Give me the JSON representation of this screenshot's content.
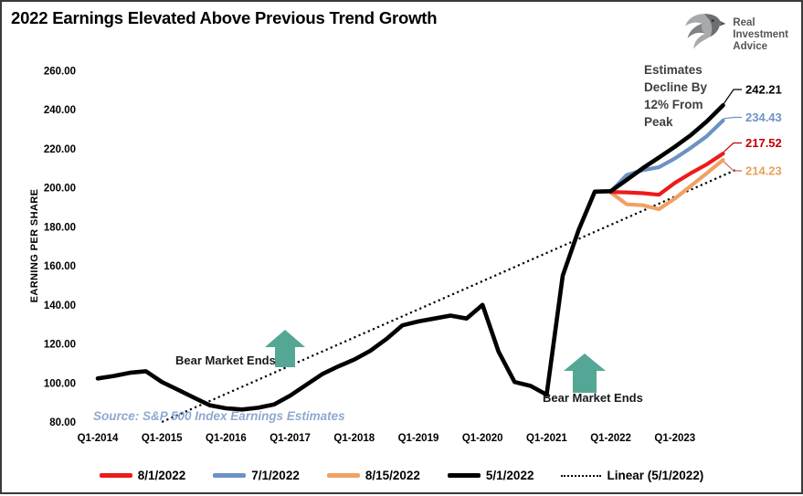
{
  "title": "2022 Earnings Elevated Above Previous Trend Growth",
  "logo": {
    "lines": [
      "Real",
      "Investment",
      "Advice"
    ]
  },
  "chart_data": {
    "type": "line",
    "title": "2022 Earnings Elevated Above Previous Trend Growth",
    "xlabel": "",
    "ylabel": "EARNING PER SHARE",
    "ylim": [
      80,
      260
    ],
    "ytick_step": 20,
    "yticks": [
      "260.00",
      "240.00",
      "220.00",
      "200.00",
      "180.00",
      "160.00",
      "140.00",
      "120.00",
      "100.00",
      "80.00"
    ],
    "xticks": [
      "Q1-2014",
      "Q1-2015",
      "Q1-2016",
      "Q1-2017",
      "Q1-2018",
      "Q1-2019",
      "Q1-2020",
      "Q1-2021",
      "Q1-2022",
      "Q1-2023"
    ],
    "x_frequency": "quarterly",
    "x_start": "Q1-2014",
    "x_end": "Q4-2023",
    "grid": false,
    "legend_position": "bottom",
    "series": [
      {
        "name": "8/15/2022",
        "color": "#F0A264",
        "width": 4.2,
        "start": "Q1-2022",
        "start_index": 32,
        "end_label": "214.23",
        "label_color": "#E8A159",
        "label_y": 185,
        "leader_color": "#CE6B52",
        "values": [
          197.5,
          191.5,
          191.0,
          189.0,
          194.5,
          201.0,
          207.5,
          214.23
        ]
      },
      {
        "name": "7/1/2022",
        "color": "#6C92C4",
        "width": 4.2,
        "start": "Q1-2022",
        "start_index": 32,
        "end_label": "234.43",
        "label_color": "#6C92C4",
        "label_y": 126.5,
        "leader_color": "#6C92C4",
        "values": [
          198.0,
          206.5,
          209.0,
          210.5,
          215.0,
          220.5,
          226.5,
          234.43
        ]
      },
      {
        "name": "8/1/2022",
        "color": "#ED1B1B",
        "width": 4.2,
        "start": "Q1-2022",
        "start_index": 32,
        "end_label": "217.52",
        "label_color": "#C00000",
        "label_y": 154.5,
        "leader_color": "#C00000",
        "values": [
          197.8,
          197.6,
          197.2,
          196.4,
          202.5,
          207.5,
          212.0,
          217.52
        ]
      },
      {
        "name": "5/1/2022",
        "color": "#000000",
        "width": 4.6,
        "start": "Q1-2014",
        "start_index": 0,
        "end_label": "242.21",
        "label_color": "#000000",
        "label_y": 96,
        "leader_color": "#000000",
        "values": [
          102.3,
          103.6,
          105.2,
          106.0,
          100.5,
          96.5,
          92.5,
          88.5,
          87.0,
          86.4,
          87.3,
          89.0,
          93.5,
          99.0,
          104.5,
          108.5,
          112.0,
          116.5,
          122.5,
          129.5,
          131.5,
          133.0,
          134.5,
          133.0,
          140.0,
          116.0,
          100.5,
          98.5,
          94.0,
          155.0,
          178.5,
          198.0,
          198.2,
          204.0,
          210.0,
          215.5,
          221.0,
          227.0,
          234.0,
          242.21
        ]
      }
    ],
    "trendline": {
      "name": "Linear (5/1/2022)",
      "style": "dotted",
      "color": "#000000",
      "start_index": 4,
      "start_value": 80,
      "end_index": 39.9,
      "end_value": 209.5
    },
    "legend": [
      {
        "label": "8/1/2022",
        "color": "#ED1B1B",
        "style": "solid"
      },
      {
        "label": "7/1/2022",
        "color": "#6C92C4",
        "style": "solid"
      },
      {
        "label": "8/15/2022",
        "color": "#F0A264",
        "style": "solid"
      },
      {
        "label": "5/1/2022",
        "color": "#000000",
        "style": "solid"
      },
      {
        "label": "Linear (5/1/2022)",
        "color": "#000000",
        "style": "dotted"
      }
    ],
    "annotations": {
      "estimates_note": {
        "lines": [
          "Estimates",
          "Decline By",
          "12% From",
          "Peak"
        ],
        "color": "#3F3F3F"
      },
      "bear_market_1": {
        "text": "Bear Market Ends",
        "arrow_color": "#55A795"
      },
      "bear_market_2": {
        "text": "Bear Market Ends",
        "arrow_color": "#55A795"
      },
      "source_note": {
        "text": "Source: S&P 500 Index Earnings Estimates",
        "color": "#8FA8D2"
      }
    }
  }
}
